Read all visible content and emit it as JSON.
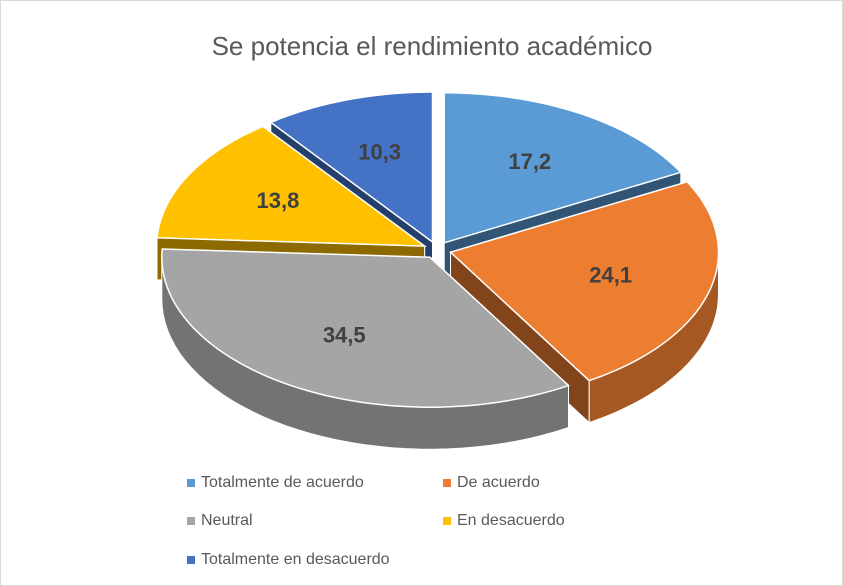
{
  "chart_data": {
    "type": "pie3d",
    "title": "Se potencia el rendimiento académico",
    "categories": [
      "Totalmente de acuerdo",
      "De acuerdo",
      "Neutral",
      "En desacuerdo",
      "Totalmente en desacuerdo"
    ],
    "values": [
      17.2,
      24.1,
      34.5,
      13.8,
      10.3
    ],
    "value_labels": [
      "17,2",
      "24,1",
      "34,5",
      "13,8",
      "10,3"
    ],
    "colors": [
      "#5b9bd5",
      "#ed7d31",
      "#a5a5a5",
      "#ffc000",
      "#4472c4"
    ],
    "legend": "bottom"
  }
}
